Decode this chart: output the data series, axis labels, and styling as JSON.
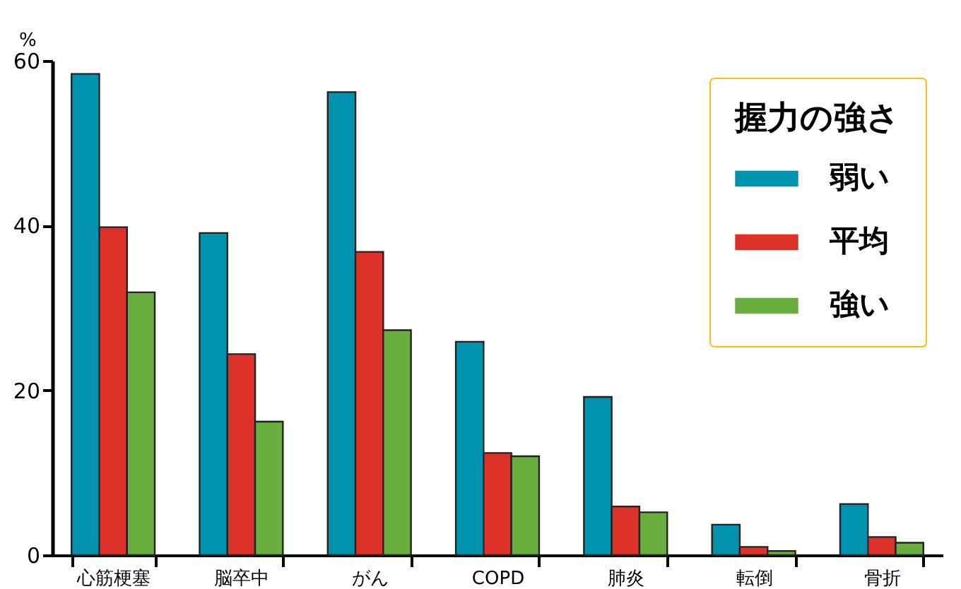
{
  "chart_data": {
    "type": "bar",
    "ylabel": "%",
    "legend_title": "握力の強さ",
    "legend": "top right",
    "categories": [
      "心筋梗塞",
      "脳卒中",
      "がん",
      "COPD",
      "肺炎",
      "転倒",
      "骨折"
    ],
    "series": [
      {
        "name": "弱い",
        "color": "#0093b0",
        "values": [
          58.4,
          39.1,
          56.2,
          25.9,
          19.2,
          3.7,
          6.2
        ]
      },
      {
        "name": "平均",
        "color": "#dc3229",
        "values": [
          39.8,
          24.4,
          36.8,
          12.4,
          5.9,
          1.0,
          2.2
        ]
      },
      {
        "name": "強い",
        "color": "#6aae40",
        "values": [
          31.9,
          16.2,
          27.3,
          12.0,
          5.2,
          0.5,
          1.5
        ]
      }
    ],
    "ylim": [
      0,
      60
    ],
    "yticks": [
      0,
      20,
      40,
      60
    ],
    "grid": false
  }
}
